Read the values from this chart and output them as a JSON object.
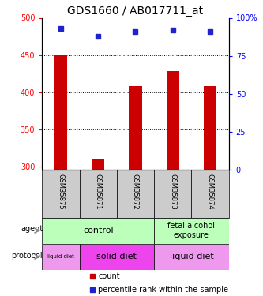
{
  "title": "GDS1660 / AB017711_at",
  "samples": [
    "GSM35875",
    "GSM35871",
    "GSM35872",
    "GSM35873",
    "GSM35874"
  ],
  "counts": [
    450,
    310,
    408,
    428,
    408
  ],
  "percentiles": [
    93,
    88,
    91,
    92,
    91
  ],
  "ylim_left": [
    295,
    500
  ],
  "yticks_left": [
    300,
    350,
    400,
    450,
    500
  ],
  "ylim_right": [
    0,
    100
  ],
  "yticks_right": [
    0,
    25,
    50,
    75,
    100
  ],
  "bar_color": "#cc0000",
  "dot_color": "#2222cc",
  "agent_control_color": "#bbffbb",
  "agent_fetal_color": "#bbffbb",
  "protocol_liquid_color": "#ee99ee",
  "protocol_solid_color": "#ee44ee",
  "sample_box_color": "#cccccc",
  "title_fontsize": 10,
  "tick_fontsize": 7,
  "sample_fontsize": 6,
  "annotation_fontsize": 7,
  "legend_fontsize": 7
}
